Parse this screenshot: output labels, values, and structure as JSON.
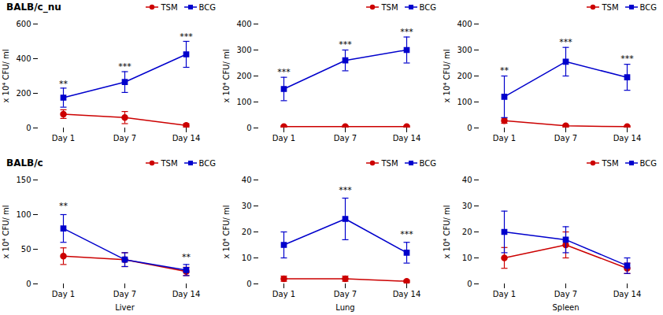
{
  "chart_data": [
    {
      "type": "line",
      "title": "BALB/c_nu",
      "ylabel": "x 10⁴ CFU/ ml",
      "categories": [
        "Day 1",
        "Day 7",
        "Day 14"
      ],
      "series": [
        {
          "name": "TSM",
          "color": "#cc0000",
          "marker": "circle",
          "values": [
            80,
            60,
            15
          ],
          "errors": [
            25,
            35,
            10
          ]
        },
        {
          "name": "BCG",
          "color": "#0000cc",
          "marker": "square",
          "values": [
            175,
            265,
            425
          ],
          "errors": [
            55,
            60,
            75
          ]
        }
      ],
      "annotations": [
        {
          "text": "**",
          "x": "Day 1",
          "y": 240
        },
        {
          "text": "***",
          "x": "Day 7",
          "y": 340
        },
        {
          "text": "***",
          "x": "Day 14",
          "y": 510
        }
      ],
      "ylim": [
        0,
        600
      ],
      "yticks": [
        0,
        200,
        400,
        600
      ],
      "legend": "upper right"
    },
    {
      "type": "line",
      "ylabel": "x 10⁴ CFU/ ml",
      "categories": [
        "Day 1",
        "Day 7",
        "Day 14"
      ],
      "series": [
        {
          "name": "TSM",
          "color": "#cc0000",
          "marker": "circle",
          "values": [
            5,
            5,
            5
          ],
          "errors": [
            3,
            3,
            3
          ]
        },
        {
          "name": "BCG",
          "color": "#0000cc",
          "marker": "square",
          "values": [
            150,
            260,
            300
          ],
          "errors": [
            45,
            40,
            50
          ]
        }
      ],
      "annotations": [
        {
          "text": "***",
          "x": "Day 1",
          "y": 205
        },
        {
          "text": "***",
          "x": "Day 7",
          "y": 310
        },
        {
          "text": "***",
          "x": "Day 14",
          "y": 360
        }
      ],
      "ylim": [
        0,
        400
      ],
      "yticks": [
        0,
        100,
        200,
        300,
        400
      ],
      "legend": "upper right"
    },
    {
      "type": "line",
      "ylabel": "x 10⁴ CFU/ ml",
      "categories": [
        "Day 1",
        "Day 7",
        "Day 14"
      ],
      "series": [
        {
          "name": "TSM",
          "color": "#cc0000",
          "marker": "circle",
          "values": [
            28,
            8,
            5
          ],
          "errors": [
            10,
            5,
            3
          ]
        },
        {
          "name": "BCG",
          "color": "#0000cc",
          "marker": "square",
          "values": [
            120,
            255,
            195
          ],
          "errors": [
            80,
            55,
            50
          ]
        }
      ],
      "annotations": [
        {
          "text": "**",
          "x": "Day 1",
          "y": 210
        },
        {
          "text": "***",
          "x": "Day 7",
          "y": 320
        },
        {
          "text": "***",
          "x": "Day 14",
          "y": 255
        }
      ],
      "ylim": [
        0,
        400
      ],
      "yticks": [
        0,
        100,
        200,
        300,
        400
      ],
      "legend": "upper right"
    },
    {
      "type": "line",
      "title": "BALB/c",
      "ylabel": "x 10⁴ CFU/ ml",
      "xlabel": "Liver",
      "categories": [
        "Day 1",
        "Day 7",
        "Day 14"
      ],
      "series": [
        {
          "name": "TSM",
          "color": "#cc0000",
          "marker": "circle",
          "values": [
            40,
            35,
            18
          ],
          "errors": [
            12,
            10,
            6
          ]
        },
        {
          "name": "BCG",
          "color": "#0000cc",
          "marker": "square",
          "values": [
            80,
            35,
            20
          ],
          "errors": [
            20,
            10,
            8
          ]
        }
      ],
      "annotations": [
        {
          "text": "**",
          "x": "Day 1",
          "y": 108
        },
        {
          "text": "**",
          "x": "Day 14",
          "y": 35
        }
      ],
      "ylim": [
        0,
        150
      ],
      "yticks": [
        0,
        50,
        100,
        150
      ],
      "legend": "upper right"
    },
    {
      "type": "line",
      "ylabel": "x 10⁴ CFU/ ml",
      "xlabel": "Lung",
      "categories": [
        "Day 1",
        "Day 7",
        "Day 14"
      ],
      "series": [
        {
          "name": "TSM",
          "color": "#cc0000",
          "marker": "circle",
          "values": [
            2,
            2,
            1
          ],
          "errors": [
            1,
            1,
            0.5
          ]
        },
        {
          "name": "BCG",
          "color": "#0000cc",
          "marker": "square",
          "values": [
            15,
            25,
            12
          ],
          "errors": [
            5,
            8,
            4
          ]
        }
      ],
      "annotations": [
        {
          "text": "***",
          "x": "Day 7",
          "y": 35
        },
        {
          "text": "***",
          "x": "Day 14",
          "y": 18
        }
      ],
      "ylim": [
        0,
        40
      ],
      "yticks": [
        0,
        10,
        20,
        30,
        40
      ],
      "legend": "upper right"
    },
    {
      "type": "line",
      "ylabel": "x 10⁴ CFU/ ml",
      "xlabel": "Spleen",
      "categories": [
        "Day 1",
        "Day 7",
        "Day 14"
      ],
      "series": [
        {
          "name": "TSM",
          "color": "#cc0000",
          "marker": "circle",
          "values": [
            10,
            15,
            6
          ],
          "errors": [
            4,
            5,
            2
          ]
        },
        {
          "name": "BCG",
          "color": "#0000cc",
          "marker": "square",
          "values": [
            20,
            17,
            7
          ],
          "errors": [
            8,
            5,
            3
          ]
        }
      ],
      "ylim": [
        0,
        40
      ],
      "yticks": [
        0,
        10,
        20,
        30,
        40
      ],
      "legend": "upper right"
    }
  ]
}
